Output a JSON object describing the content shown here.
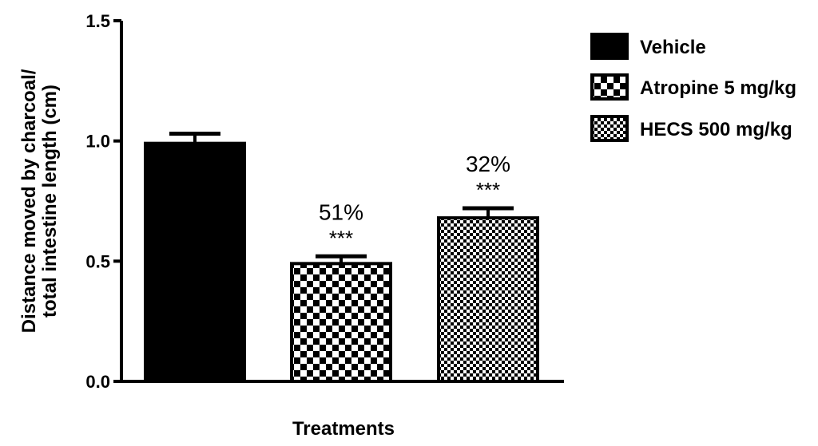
{
  "chart_data": {
    "type": "bar",
    "title": "",
    "xlabel": "Treatments",
    "ylabel_line1": "Distance moved by charcoal/",
    "ylabel_line2": "total intestine length (cm)",
    "ylim": [
      0,
      1.5
    ],
    "yticks": [
      "0.0",
      "0.5",
      "1.0",
      "1.5"
    ],
    "ytick_values": [
      0,
      0.5,
      1.0,
      1.5
    ],
    "grid": false,
    "legend_position": "top-right",
    "categories": [
      "Vehicle",
      "Atropine 5 mg/kg",
      "HECS 500 mg/kg"
    ],
    "values": [
      0.99,
      0.49,
      0.68
    ],
    "errors": [
      0.04,
      0.03,
      0.04
    ],
    "patterns": [
      "solid",
      "checker",
      "fine-checker"
    ],
    "annotations": [
      {
        "category": "Atropine 5 mg/kg",
        "percent": "51%",
        "significance": "***"
      },
      {
        "category": "HECS 500 mg/kg",
        "percent": "32%",
        "significance": "***"
      }
    ]
  }
}
